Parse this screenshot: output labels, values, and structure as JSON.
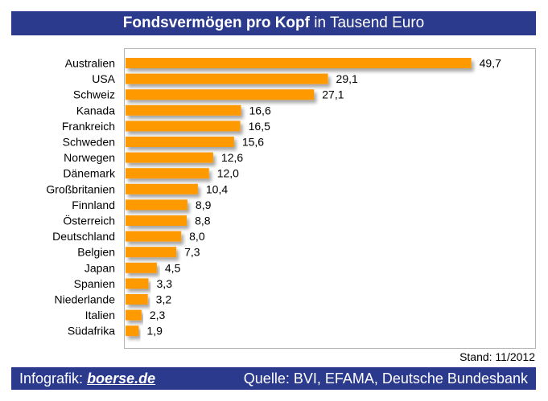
{
  "header": {
    "title_bold": "Fondsvermögen pro Kopf",
    "title_rest": "in Tausend Euro"
  },
  "stand": "Stand: 11/2012",
  "footer": {
    "infografik_label": "Infografik:",
    "brand": "boerse.de",
    "source": "Quelle: BVI, EFAMA, Deutsche Bundesbank"
  },
  "colors": {
    "bar": "#ff9900",
    "header_bg": "#2b3a8c"
  },
  "chart_data": {
    "type": "bar",
    "orientation": "horizontal",
    "categories": [
      "Australien",
      "USA",
      "Schweiz",
      "Kanada",
      "Frankreich",
      "Schweden",
      "Norwegen",
      "Dänemark",
      "Großbritanien",
      "Finnland",
      "Österreich",
      "Deutschland",
      "Belgien",
      "Japan",
      "Spanien",
      "Niederlande",
      "Italien",
      "Südafrika"
    ],
    "values": [
      49.7,
      29.1,
      27.1,
      16.6,
      16.5,
      15.6,
      12.6,
      12.0,
      10.4,
      8.9,
      8.8,
      8.0,
      7.3,
      4.5,
      3.3,
      3.2,
      2.3,
      1.9
    ],
    "value_labels": [
      "49,7",
      "29,1",
      "27,1",
      "16,6",
      "16,5",
      "15,6",
      "12,6",
      "12,0",
      "10,4",
      "8,9",
      "8,8",
      "8,0",
      "7,3",
      "4,5",
      "3,3",
      "3,2",
      "2,3",
      "1,9"
    ],
    "title": "Fondsvermögen pro Kopf in Tausend Euro",
    "xlim": [
      0,
      59
    ],
    "grid": false,
    "legend": "none"
  }
}
